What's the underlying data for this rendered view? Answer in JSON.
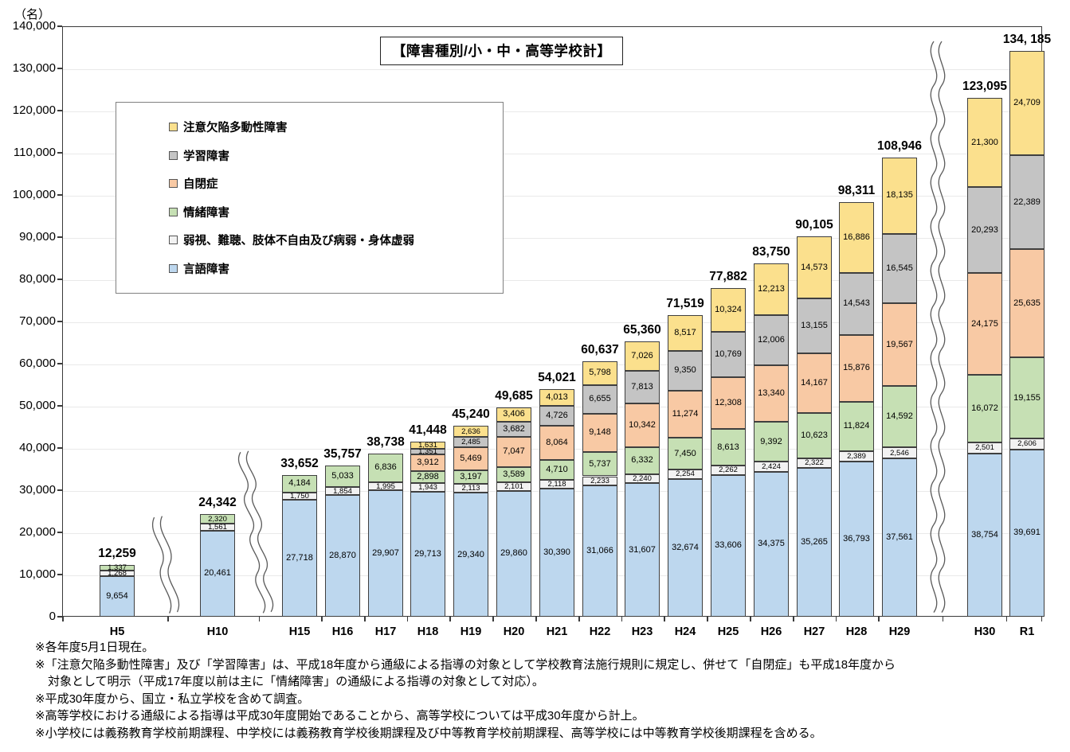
{
  "unit_label": "（名）",
  "title": "【障害種別/小・中・高等学校計】",
  "legend": [
    {
      "label": "注意欠陥多動性障害",
      "color": "#FBE08D"
    },
    {
      "label": "学習障害",
      "color": "#C4C4C4"
    },
    {
      "label": "自閉症",
      "color": "#F8C9A4"
    },
    {
      "label": "情緒障害",
      "color": "#C6E0B4"
    },
    {
      "label": "弱視、難聴、肢体不自由及び病弱・身体虚弱",
      "color": "#F2F2F2"
    },
    {
      "label": "言語障害",
      "color": "#BDD7EE"
    }
  ],
  "chart_data": {
    "type": "bar",
    "stacked": true,
    "title": "【障害種別/小・中・高等学校計】",
    "ylabel": "（名）",
    "ylim": [
      0,
      140000
    ],
    "ytick_step": 10000,
    "grid": "horizontal-light",
    "legend_position": "upper-left-inside",
    "axis_breaks_after": [
      "H5",
      "H10",
      "H29"
    ],
    "categories": [
      "H5",
      "H10",
      "H15",
      "H16",
      "H17",
      "H18",
      "H19",
      "H20",
      "H21",
      "H22",
      "H23",
      "H24",
      "H25",
      "H26",
      "H27",
      "H28",
      "H29",
      "H30",
      "R1"
    ],
    "series": [
      {
        "name": "言語障害",
        "color": "#BDD7EE",
        "values": [
          9654,
          20461,
          27718,
          28870,
          29907,
          29713,
          29340,
          29860,
          30390,
          31066,
          31607,
          32674,
          33606,
          34375,
          35265,
          36793,
          37561,
          38754,
          39691
        ]
      },
      {
        "name": "弱視、難聴、肢体不自由及び病弱・身体虚弱",
        "color": "#F2F2F2",
        "values": [
          1268,
          1561,
          1750,
          1854,
          1995,
          1943,
          2113,
          2101,
          2118,
          2233,
          2240,
          2254,
          2262,
          2424,
          2322,
          2389,
          2546,
          2501,
          2606
        ]
      },
      {
        "name": "情緒障害",
        "color": "#C6E0B4",
        "values": [
          1337,
          2320,
          4184,
          5033,
          6836,
          2898,
          3197,
          3589,
          4710,
          5737,
          6332,
          7450,
          8613,
          9392,
          10623,
          11824,
          14592,
          16072,
          19155
        ]
      },
      {
        "name": "自閉症",
        "color": "#F8C9A4",
        "values": [
          null,
          null,
          null,
          null,
          null,
          3912,
          5469,
          7047,
          8064,
          9148,
          10342,
          11274,
          12308,
          13340,
          14167,
          15876,
          19567,
          24175,
          25635
        ]
      },
      {
        "name": "学習障害",
        "color": "#C4C4C4",
        "values": [
          null,
          null,
          null,
          null,
          null,
          1351,
          2485,
          3682,
          4726,
          6655,
          7813,
          9350,
          10769,
          12006,
          13155,
          14543,
          16545,
          20293,
          22389
        ]
      },
      {
        "name": "注意欠陥多動性障害",
        "color": "#FBE08D",
        "values": [
          null,
          null,
          null,
          null,
          null,
          1631,
          2636,
          3406,
          4013,
          5798,
          7026,
          8517,
          10324,
          12213,
          14573,
          16886,
          18135,
          21300,
          24709
        ]
      }
    ],
    "totals_display": [
      "12,259",
      "24,342",
      "33,652",
      "35,757",
      "38,738",
      "41,448",
      "45,240",
      "49,685",
      "54,021",
      "60,637",
      "65,360",
      "71,519",
      "77,882",
      "83,750",
      "90,105",
      "98,311",
      "108,946",
      "123,095",
      "134, 185"
    ]
  },
  "footnotes": [
    "※各年度5月1日現在。",
    "※「注意欠陥多動性障害」及び「学習障害」は、平成18年度から通級による指導の対象として学校教育法施行規則に規定し、併せて「自閉症」も平成18年度から",
    "対象として明示（平成17年度以前は主に「情緒障害」の通級による指導の対象として対応）。",
    "※平成30年度から、国立・私立学校を含めて調査。",
    "※高等学校における通級による指導は平成30年度開始であることから、高等学校については平成30年度から計上。",
    "※小学校には義務教育学校前期課程、中学校には義務教育学校後期課程及び中等教育学校前期課程、高等学校には中等教育学校後期課程を含める。"
  ]
}
